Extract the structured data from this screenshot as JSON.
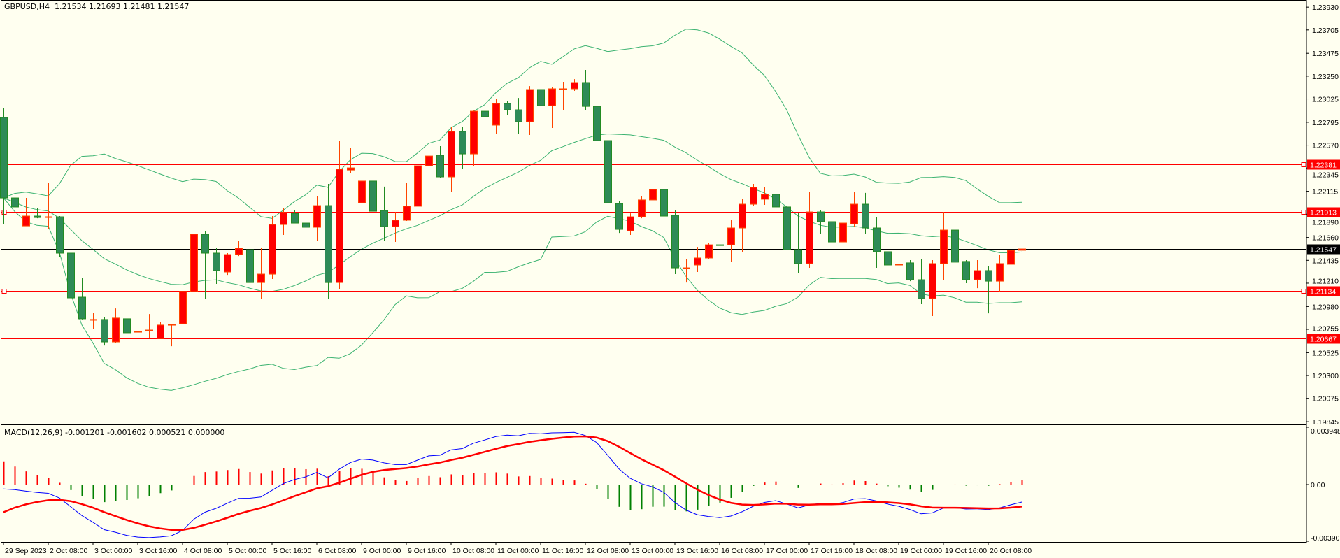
{
  "header": {
    "symbol_label": "GBPUSD,H4",
    "ohlc": "1.21534 1.21693 1.21481 1.21547"
  },
  "indicator_label": "MACD(12,26,9) -0.001201 -0.001602 0.000521 0.000000",
  "colors": {
    "background": "#FFFFF0",
    "bull_body": "#FF0000",
    "bull_border": "#FF4500",
    "bear_body": "#2E8B57",
    "bear_border": "#228B22",
    "bands": "#3CB371",
    "level_line": "#FF0000",
    "price_line": "#000000",
    "macd_main": "#0000FF",
    "macd_signal": "#FF0000",
    "hist_pos": "#FF0000",
    "hist_neg": "#008000"
  },
  "chart_data": {
    "type": "candlestick",
    "symbol": "GBPUSD",
    "timeframe": "H4",
    "candle_format": [
      "open",
      "high",
      "low",
      "close"
    ],
    "candles": [
      [
        1.22843,
        1.22932,
        1.21795,
        1.2205
      ],
      [
        1.2205,
        1.22078,
        1.21843,
        1.21961
      ],
      [
        1.21774,
        1.2205,
        1.21774,
        1.21871
      ],
      [
        1.21871,
        1.21947,
        1.2185,
        1.21857
      ],
      [
        1.21857,
        1.22195,
        1.2174,
        1.21864
      ],
      [
        1.21864,
        1.21871,
        1.21472,
        1.21506
      ],
      [
        1.21506,
        1.21513,
        1.21058,
        1.21065
      ],
      [
        1.21072,
        1.21265,
        1.20852,
        1.20859
      ],
      [
        1.20845,
        1.2092,
        1.20762,
        1.20852
      ],
      [
        1.20852,
        1.20872,
        1.20596,
        1.20631
      ],
      [
        1.20631,
        1.20961,
        1.20617,
        1.20866
      ],
      [
        1.20859,
        1.20879,
        1.20507,
        1.20721
      ],
      [
        1.20728,
        1.21009,
        1.20514,
        1.20734
      ],
      [
        1.20741,
        1.20906,
        1.20672,
        1.20748
      ],
      [
        1.20665,
        1.20831,
        1.20665,
        1.20797
      ],
      [
        1.20797,
        1.20803,
        1.20589,
        1.20803
      ],
      [
        1.2081,
        1.21147,
        1.20286,
        1.21127
      ],
      [
        1.21127,
        1.21761,
        1.21113,
        1.21692
      ],
      [
        1.21692,
        1.21726,
        1.21051,
        1.21506
      ],
      [
        1.21506,
        1.2156,
        1.21203,
        1.21334
      ],
      [
        1.2132,
        1.21506,
        1.21292,
        1.21492
      ],
      [
        1.21492,
        1.21623,
        1.21478,
        1.21554
      ],
      [
        1.2154,
        1.21609,
        1.21147,
        1.21216
      ],
      [
        1.21216,
        1.21554,
        1.21058,
        1.21299
      ],
      [
        1.21299,
        1.21871,
        1.21251,
        1.21788
      ],
      [
        1.21788,
        1.21954,
        1.21685,
        1.21905
      ],
      [
        1.21898,
        1.21926,
        1.21802,
        1.21802
      ],
      [
        1.21802,
        1.21885,
        1.21747,
        1.21761
      ],
      [
        1.21761,
        1.22064,
        1.21623,
        1.21974
      ],
      [
        1.21974,
        1.22188,
        1.21051,
        1.21216
      ],
      [
        1.21216,
        1.22608,
        1.21154,
        1.22332
      ],
      [
        1.22325,
        1.22546,
        1.22291,
        1.22346
      ],
      [
        1.22002,
        1.22237,
        1.21912,
        1.22216
      ],
      [
        1.22216,
        1.2223,
        1.21912,
        1.21919
      ],
      [
        1.21926,
        1.22161,
        1.21623,
        1.21767
      ],
      [
        1.21767,
        1.21912,
        1.21616,
        1.2183
      ],
      [
        1.2183,
        1.22202,
        1.21823,
        1.21968
      ],
      [
        1.21968,
        1.22436,
        1.21968,
        1.22367
      ],
      [
        1.22367,
        1.22539,
        1.22284,
        1.22463
      ],
      [
        1.2247,
        1.2256,
        1.22244,
        1.22257
      ],
      [
        1.22257,
        1.22753,
        1.22112,
        1.22705
      ],
      [
        1.22705,
        1.22753,
        1.22339,
        1.22484
      ],
      [
        1.22484,
        1.22911,
        1.22367,
        1.22904
      ],
      [
        1.22904,
        1.22911,
        1.22622,
        1.2285
      ],
      [
        1.22767,
        1.23028,
        1.22677,
        1.2298
      ],
      [
        1.2298,
        1.23007,
        1.22864,
        1.22918
      ],
      [
        1.22918,
        1.23035,
        1.22684,
        1.22801
      ],
      [
        1.22801,
        1.23152,
        1.2267,
        1.23118
      ],
      [
        1.23118,
        1.23373,
        1.2287,
        1.22959
      ],
      [
        1.22959,
        1.23139,
        1.22739,
        1.23125
      ],
      [
        1.23118,
        1.23194,
        1.22918,
        1.23125
      ],
      [
        1.23125,
        1.23221,
        1.23104,
        1.23187
      ],
      [
        1.23187,
        1.23311,
        1.22918,
        1.22952
      ],
      [
        1.22952,
        1.23145,
        1.22505,
        1.22615
      ],
      [
        1.22615,
        1.22698,
        1.21981,
        1.22002
      ],
      [
        1.21995,
        1.22016,
        1.21705,
        1.2174
      ],
      [
        1.21726,
        1.21898,
        1.21685,
        1.21864
      ],
      [
        1.21864,
        1.22071,
        1.2185,
        1.2203
      ],
      [
        1.2203,
        1.2225,
        1.21836,
        1.22133
      ],
      [
        1.22133,
        1.22133,
        1.21581,
        1.21871
      ],
      [
        1.21878,
        1.21933,
        1.21299,
        1.21361
      ],
      [
        1.21354,
        1.21451,
        1.21216,
        1.21361
      ],
      [
        1.21389,
        1.21567,
        1.2132,
        1.21458
      ],
      [
        1.21458,
        1.21609,
        1.21451,
        1.21588
      ],
      [
        1.21588,
        1.21774,
        1.21499,
        1.21581
      ],
      [
        1.21588,
        1.21836,
        1.21417,
        1.21754
      ],
      [
        1.21754,
        1.22043,
        1.2152,
        1.21988
      ],
      [
        1.21988,
        1.22188,
        1.21974,
        1.22154
      ],
      [
        1.22037,
        1.22154,
        1.21981,
        1.22085
      ],
      [
        1.22085,
        1.22085,
        1.21919,
        1.21961
      ],
      [
        1.21961,
        1.22002,
        1.21486,
        1.2154
      ],
      [
        1.2154,
        1.21905,
        1.21313,
        1.21403
      ],
      [
        1.21403,
        1.22112,
        1.21361,
        1.21912
      ],
      [
        1.21912,
        1.21926,
        1.21698,
        1.21816
      ],
      [
        1.21816,
        1.2183,
        1.21567,
        1.21616
      ],
      [
        1.21616,
        1.2183,
        1.21574,
        1.21802
      ],
      [
        1.21795,
        1.22106,
        1.21767,
        1.21988
      ],
      [
        1.21988,
        1.22099,
        1.21698,
        1.21754
      ],
      [
        1.21754,
        1.21857,
        1.21361,
        1.2152
      ],
      [
        1.2152,
        1.21754,
        1.21354,
        1.21389
      ],
      [
        1.21389,
        1.21451,
        1.21348,
        1.21396
      ],
      [
        1.2141,
        1.21437,
        1.2123,
        1.21244
      ],
      [
        1.21244,
        1.21444,
        1.21003,
        1.21058
      ],
      [
        1.21058,
        1.21437,
        1.20886,
        1.21403
      ],
      [
        1.21403,
        1.21912,
        1.21237,
        1.21733
      ],
      [
        1.21733,
        1.21823,
        1.21361,
        1.21417
      ],
      [
        1.21424,
        1.21437,
        1.2121,
        1.21244
      ],
      [
        1.21244,
        1.21437,
        1.21161,
        1.21334
      ],
      [
        1.21334,
        1.21375,
        1.20913,
        1.2123
      ],
      [
        1.2123,
        1.21485,
        1.21127,
        1.21403
      ],
      [
        1.21396,
        1.21602,
        1.21299,
        1.21533
      ],
      [
        1.21534,
        1.21693,
        1.21481,
        1.21547
      ]
    ],
    "time_labels": [
      {
        "bar": 0,
        "text": "29 Sep 2023"
      },
      {
        "bar": 4,
        "text": "2 Oct 08:00"
      },
      {
        "bar": 8,
        "text": "3 Oct 00:00"
      },
      {
        "bar": 12,
        "text": "3 Oct 16:00"
      },
      {
        "bar": 16,
        "text": "4 Oct 08:00"
      },
      {
        "bar": 20,
        "text": "5 Oct 00:00"
      },
      {
        "bar": 24,
        "text": "5 Oct 16:00"
      },
      {
        "bar": 28,
        "text": "6 Oct 08:00"
      },
      {
        "bar": 32,
        "text": "9 Oct 00:00"
      },
      {
        "bar": 36,
        "text": "9 Oct 16:00"
      },
      {
        "bar": 40,
        "text": "10 Oct 08:00"
      },
      {
        "bar": 44,
        "text": "11 Oct 00:00"
      },
      {
        "bar": 48,
        "text": "11 Oct 16:00"
      },
      {
        "bar": 52,
        "text": "12 Oct 08:00"
      },
      {
        "bar": 56,
        "text": "13 Oct 00:00"
      },
      {
        "bar": 60,
        "text": "13 Oct 16:00"
      },
      {
        "bar": 64,
        "text": "16 Oct 08:00"
      },
      {
        "bar": 68,
        "text": "17 Oct 00:00"
      },
      {
        "bar": 72,
        "text": "17 Oct 16:00"
      },
      {
        "bar": 76,
        "text": "18 Oct 08:00"
      },
      {
        "bar": 80,
        "text": "19 Oct 00:00"
      },
      {
        "bar": 84,
        "text": "19 Oct 16:00"
      },
      {
        "bar": 88,
        "text": "20 Oct 08:00"
      }
    ],
    "price_axis": {
      "ylim": [
        1.19825,
        1.24
      ],
      "ticks": [
        "1.23930",
        "1.23705",
        "1.23475",
        "1.23250",
        "1.23025",
        "1.22795",
        "1.22570",
        "1.22345",
        "1.22115",
        "1.21890",
        "1.21660",
        "1.21435",
        "1.21210",
        "1.20980",
        "1.20755",
        "1.20525",
        "1.20300",
        "1.20075",
        "1.19845"
      ]
    },
    "levels": [
      {
        "label": "1.22381",
        "color": "#FF0000",
        "marker": true
      },
      {
        "label": "1.21913",
        "color": "#FF0000",
        "marker": true
      },
      {
        "label": "1.21134",
        "color": "#FF0000",
        "marker": true
      },
      {
        "label": "1.20667",
        "color": "#FF0000",
        "marker": false
      }
    ],
    "current_price": {
      "label": "1.21547",
      "color": "#000000"
    },
    "bollinger": {
      "period": 20,
      "deviation": 2
    },
    "macd": {
      "fast": 12,
      "slow": 26,
      "signal": 9,
      "ylim": [
        -0.003905,
        0.003948
      ],
      "tick_labels": [
        "0.003948",
        "0.00",
        "-0.003905"
      ]
    }
  }
}
